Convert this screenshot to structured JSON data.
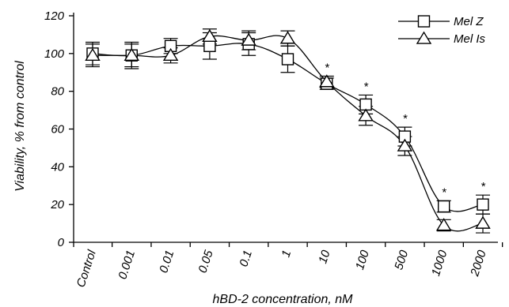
{
  "chart_data": {
    "type": "line",
    "title": "",
    "xlabel": "hBD-2 concentration, nM",
    "ylabel": "Viability, % from control",
    "categories": [
      "Control",
      "0.001",
      "0.01",
      "0.05",
      "0.1",
      "1",
      "10",
      "100",
      "500",
      "1000",
      "2000"
    ],
    "ylim": [
      0,
      120
    ],
    "yticks": [
      0,
      20,
      40,
      60,
      80,
      100,
      120
    ],
    "grid": false,
    "legend_position": "top-right",
    "series": [
      {
        "name": "Mel Z",
        "marker": "square",
        "values": [
          100,
          99,
          104,
          104,
          105,
          97,
          84,
          73,
          56,
          19,
          20
        ],
        "errors": [
          6,
          7,
          4,
          7,
          6,
          7,
          3,
          5,
          5,
          3,
          5
        ]
      },
      {
        "name": "Mel Is",
        "marker": "triangle",
        "values": [
          99,
          99,
          99,
          109,
          107,
          108,
          85,
          67,
          51,
          9,
          10
        ],
        "errors": [
          6,
          6,
          4,
          4,
          5,
          4,
          3,
          5,
          5,
          3,
          5
        ]
      }
    ],
    "significance": {
      "symbol": "*",
      "categories": [
        "10",
        "100",
        "500",
        "1000",
        "2000"
      ]
    }
  }
}
